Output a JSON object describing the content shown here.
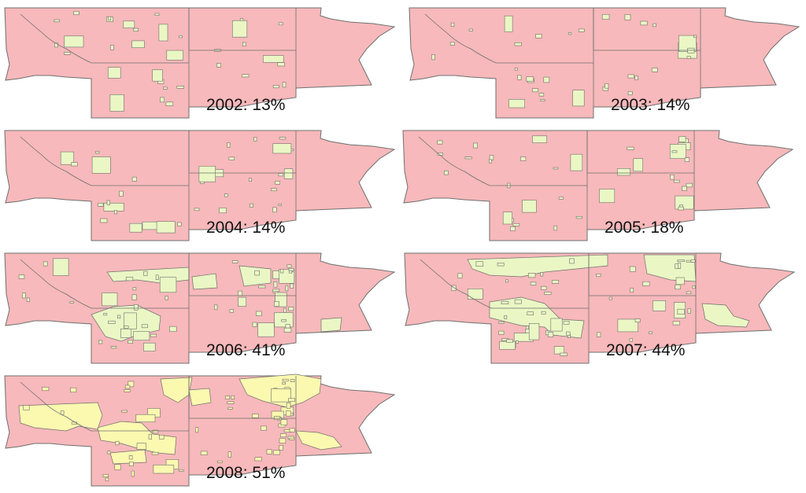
{
  "colors": {
    "background_region": "#f7b9bb",
    "border": "#6f6f6f",
    "coverage_green": "#eaf7c4",
    "coverage_yellow": "#fbf8b0"
  },
  "panels": [
    {
      "year": "2002",
      "coverage": "13%",
      "coverage_fraction": 0.13,
      "fill": "green"
    },
    {
      "year": "2003",
      "coverage": "14%",
      "coverage_fraction": 0.14,
      "fill": "green"
    },
    {
      "year": "2004",
      "coverage": "14%",
      "coverage_fraction": 0.14,
      "fill": "green"
    },
    {
      "year": "2005",
      "coverage": "18%",
      "coverage_fraction": 0.18,
      "fill": "green"
    },
    {
      "year": "2006",
      "coverage": "41%",
      "coverage_fraction": 0.41,
      "fill": "green"
    },
    {
      "year": "2007",
      "coverage": "44%",
      "coverage_fraction": 0.44,
      "fill": "green"
    },
    {
      "year": "2008",
      "coverage": "51%",
      "coverage_fraction": 0.51,
      "fill": "yellow"
    }
  ]
}
